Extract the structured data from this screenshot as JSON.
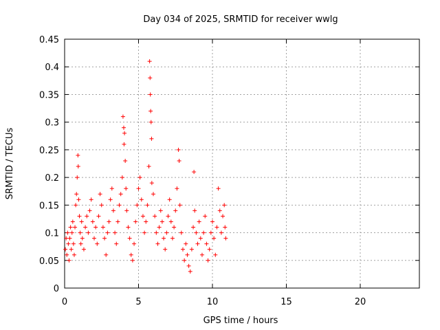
{
  "chart_data": {
    "type": "scatter",
    "title": "Day 034 of 2025, SRMTID for receiver wwlg",
    "xlabel": "GPS time / hours",
    "ylabel": "SRMTID / TECUs",
    "xlim": [
      0,
      24
    ],
    "ylim": [
      0,
      0.45
    ],
    "xticks": [
      0,
      5,
      10,
      15,
      20
    ],
    "yticks": [
      0,
      0.05,
      0.1,
      0.15,
      0.2,
      0.25,
      0.3,
      0.35,
      0.4,
      0.45
    ],
    "grid": true,
    "marker": "+",
    "color": "#ff0000",
    "series": [
      {
        "name": "SRMTID",
        "points": [
          [
            0.05,
            0.07
          ],
          [
            0.1,
            0.09
          ],
          [
            0.15,
            0.06
          ],
          [
            0.2,
            0.1
          ],
          [
            0.25,
            0.08
          ],
          [
            0.3,
            0.05
          ],
          [
            0.35,
            0.09
          ],
          [
            0.4,
            0.11
          ],
          [
            0.45,
            0.07
          ],
          [
            0.5,
            0.1
          ],
          [
            0.55,
            0.12
          ],
          [
            0.6,
            0.08
          ],
          [
            0.65,
            0.06
          ],
          [
            0.7,
            0.11
          ],
          [
            0.75,
            0.15
          ],
          [
            0.8,
            0.17
          ],
          [
            0.85,
            0.2
          ],
          [
            0.9,
            0.24
          ],
          [
            0.92,
            0.22
          ],
          [
            0.95,
            0.16
          ],
          [
            1.0,
            0.13
          ],
          [
            1.05,
            0.1
          ],
          [
            1.1,
            0.08
          ],
          [
            1.15,
            0.12
          ],
          [
            1.2,
            0.09
          ],
          [
            1.3,
            0.07
          ],
          [
            1.4,
            0.11
          ],
          [
            1.5,
            0.13
          ],
          [
            1.6,
            0.1
          ],
          [
            1.7,
            0.14
          ],
          [
            1.8,
            0.16
          ],
          [
            1.9,
            0.12
          ],
          [
            2.0,
            0.09
          ],
          [
            2.1,
            0.11
          ],
          [
            2.2,
            0.08
          ],
          [
            2.3,
            0.13
          ],
          [
            2.4,
            0.17
          ],
          [
            2.5,
            0.15
          ],
          [
            2.6,
            0.11
          ],
          [
            2.7,
            0.09
          ],
          [
            2.8,
            0.06
          ],
          [
            2.9,
            0.1
          ],
          [
            3.0,
            0.12
          ],
          [
            3.1,
            0.16
          ],
          [
            3.2,
            0.18
          ],
          [
            3.3,
            0.14
          ],
          [
            3.4,
            0.1
          ],
          [
            3.5,
            0.08
          ],
          [
            3.6,
            0.12
          ],
          [
            3.7,
            0.15
          ],
          [
            3.8,
            0.17
          ],
          [
            3.9,
            0.2
          ],
          [
            3.95,
            0.31
          ],
          [
            4.0,
            0.29
          ],
          [
            4.02,
            0.26
          ],
          [
            4.05,
            0.28
          ],
          [
            4.1,
            0.23
          ],
          [
            4.15,
            0.18
          ],
          [
            4.2,
            0.14
          ],
          [
            4.3,
            0.11
          ],
          [
            4.4,
            0.09
          ],
          [
            4.5,
            0.06
          ],
          [
            4.6,
            0.05
          ],
          [
            4.7,
            0.08
          ],
          [
            4.8,
            0.12
          ],
          [
            4.9,
            0.15
          ],
          [
            5.0,
            0.18
          ],
          [
            5.1,
            0.2
          ],
          [
            5.2,
            0.16
          ],
          [
            5.3,
            0.13
          ],
          [
            5.4,
            0.1
          ],
          [
            5.5,
            0.12
          ],
          [
            5.6,
            0.15
          ],
          [
            5.7,
            0.22
          ],
          [
            5.75,
            0.41
          ],
          [
            5.78,
            0.38
          ],
          [
            5.8,
            0.35
          ],
          [
            5.82,
            0.32
          ],
          [
            5.85,
            0.3
          ],
          [
            5.88,
            0.27
          ],
          [
            5.9,
            0.19
          ],
          [
            6.0,
            0.17
          ],
          [
            6.1,
            0.13
          ],
          [
            6.2,
            0.1
          ],
          [
            6.3,
            0.08
          ],
          [
            6.4,
            0.11
          ],
          [
            6.5,
            0.14
          ],
          [
            6.6,
            0.12
          ],
          [
            6.7,
            0.09
          ],
          [
            6.8,
            0.07
          ],
          [
            6.9,
            0.1
          ],
          [
            7.0,
            0.13
          ],
          [
            7.1,
            0.16
          ],
          [
            7.2,
            0.12
          ],
          [
            7.3,
            0.09
          ],
          [
            7.4,
            0.11
          ],
          [
            7.5,
            0.14
          ],
          [
            7.6,
            0.18
          ],
          [
            7.7,
            0.25
          ],
          [
            7.75,
            0.23
          ],
          [
            7.8,
            0.15
          ],
          [
            7.9,
            0.1
          ],
          [
            8.0,
            0.07
          ],
          [
            8.1,
            0.05
          ],
          [
            8.2,
            0.08
          ],
          [
            8.3,
            0.06
          ],
          [
            8.4,
            0.04
          ],
          [
            8.5,
            0.03
          ],
          [
            8.6,
            0.07
          ],
          [
            8.7,
            0.11
          ],
          [
            8.75,
            0.21
          ],
          [
            8.8,
            0.14
          ],
          [
            8.9,
            0.1
          ],
          [
            9.0,
            0.08
          ],
          [
            9.1,
            0.12
          ],
          [
            9.2,
            0.09
          ],
          [
            9.3,
            0.06
          ],
          [
            9.4,
            0.1
          ],
          [
            9.5,
            0.13
          ],
          [
            9.6,
            0.08
          ],
          [
            9.7,
            0.05
          ],
          [
            9.8,
            0.07
          ],
          [
            9.9,
            0.1
          ],
          [
            10.0,
            0.12
          ],
          [
            10.1,
            0.09
          ],
          [
            10.2,
            0.06
          ],
          [
            10.3,
            0.11
          ],
          [
            10.4,
            0.18
          ],
          [
            10.5,
            0.14
          ],
          [
            10.6,
            0.1
          ],
          [
            10.7,
            0.13
          ],
          [
            10.8,
            0.15
          ],
          [
            10.85,
            0.11
          ],
          [
            10.9,
            0.09
          ]
        ]
      }
    ]
  }
}
